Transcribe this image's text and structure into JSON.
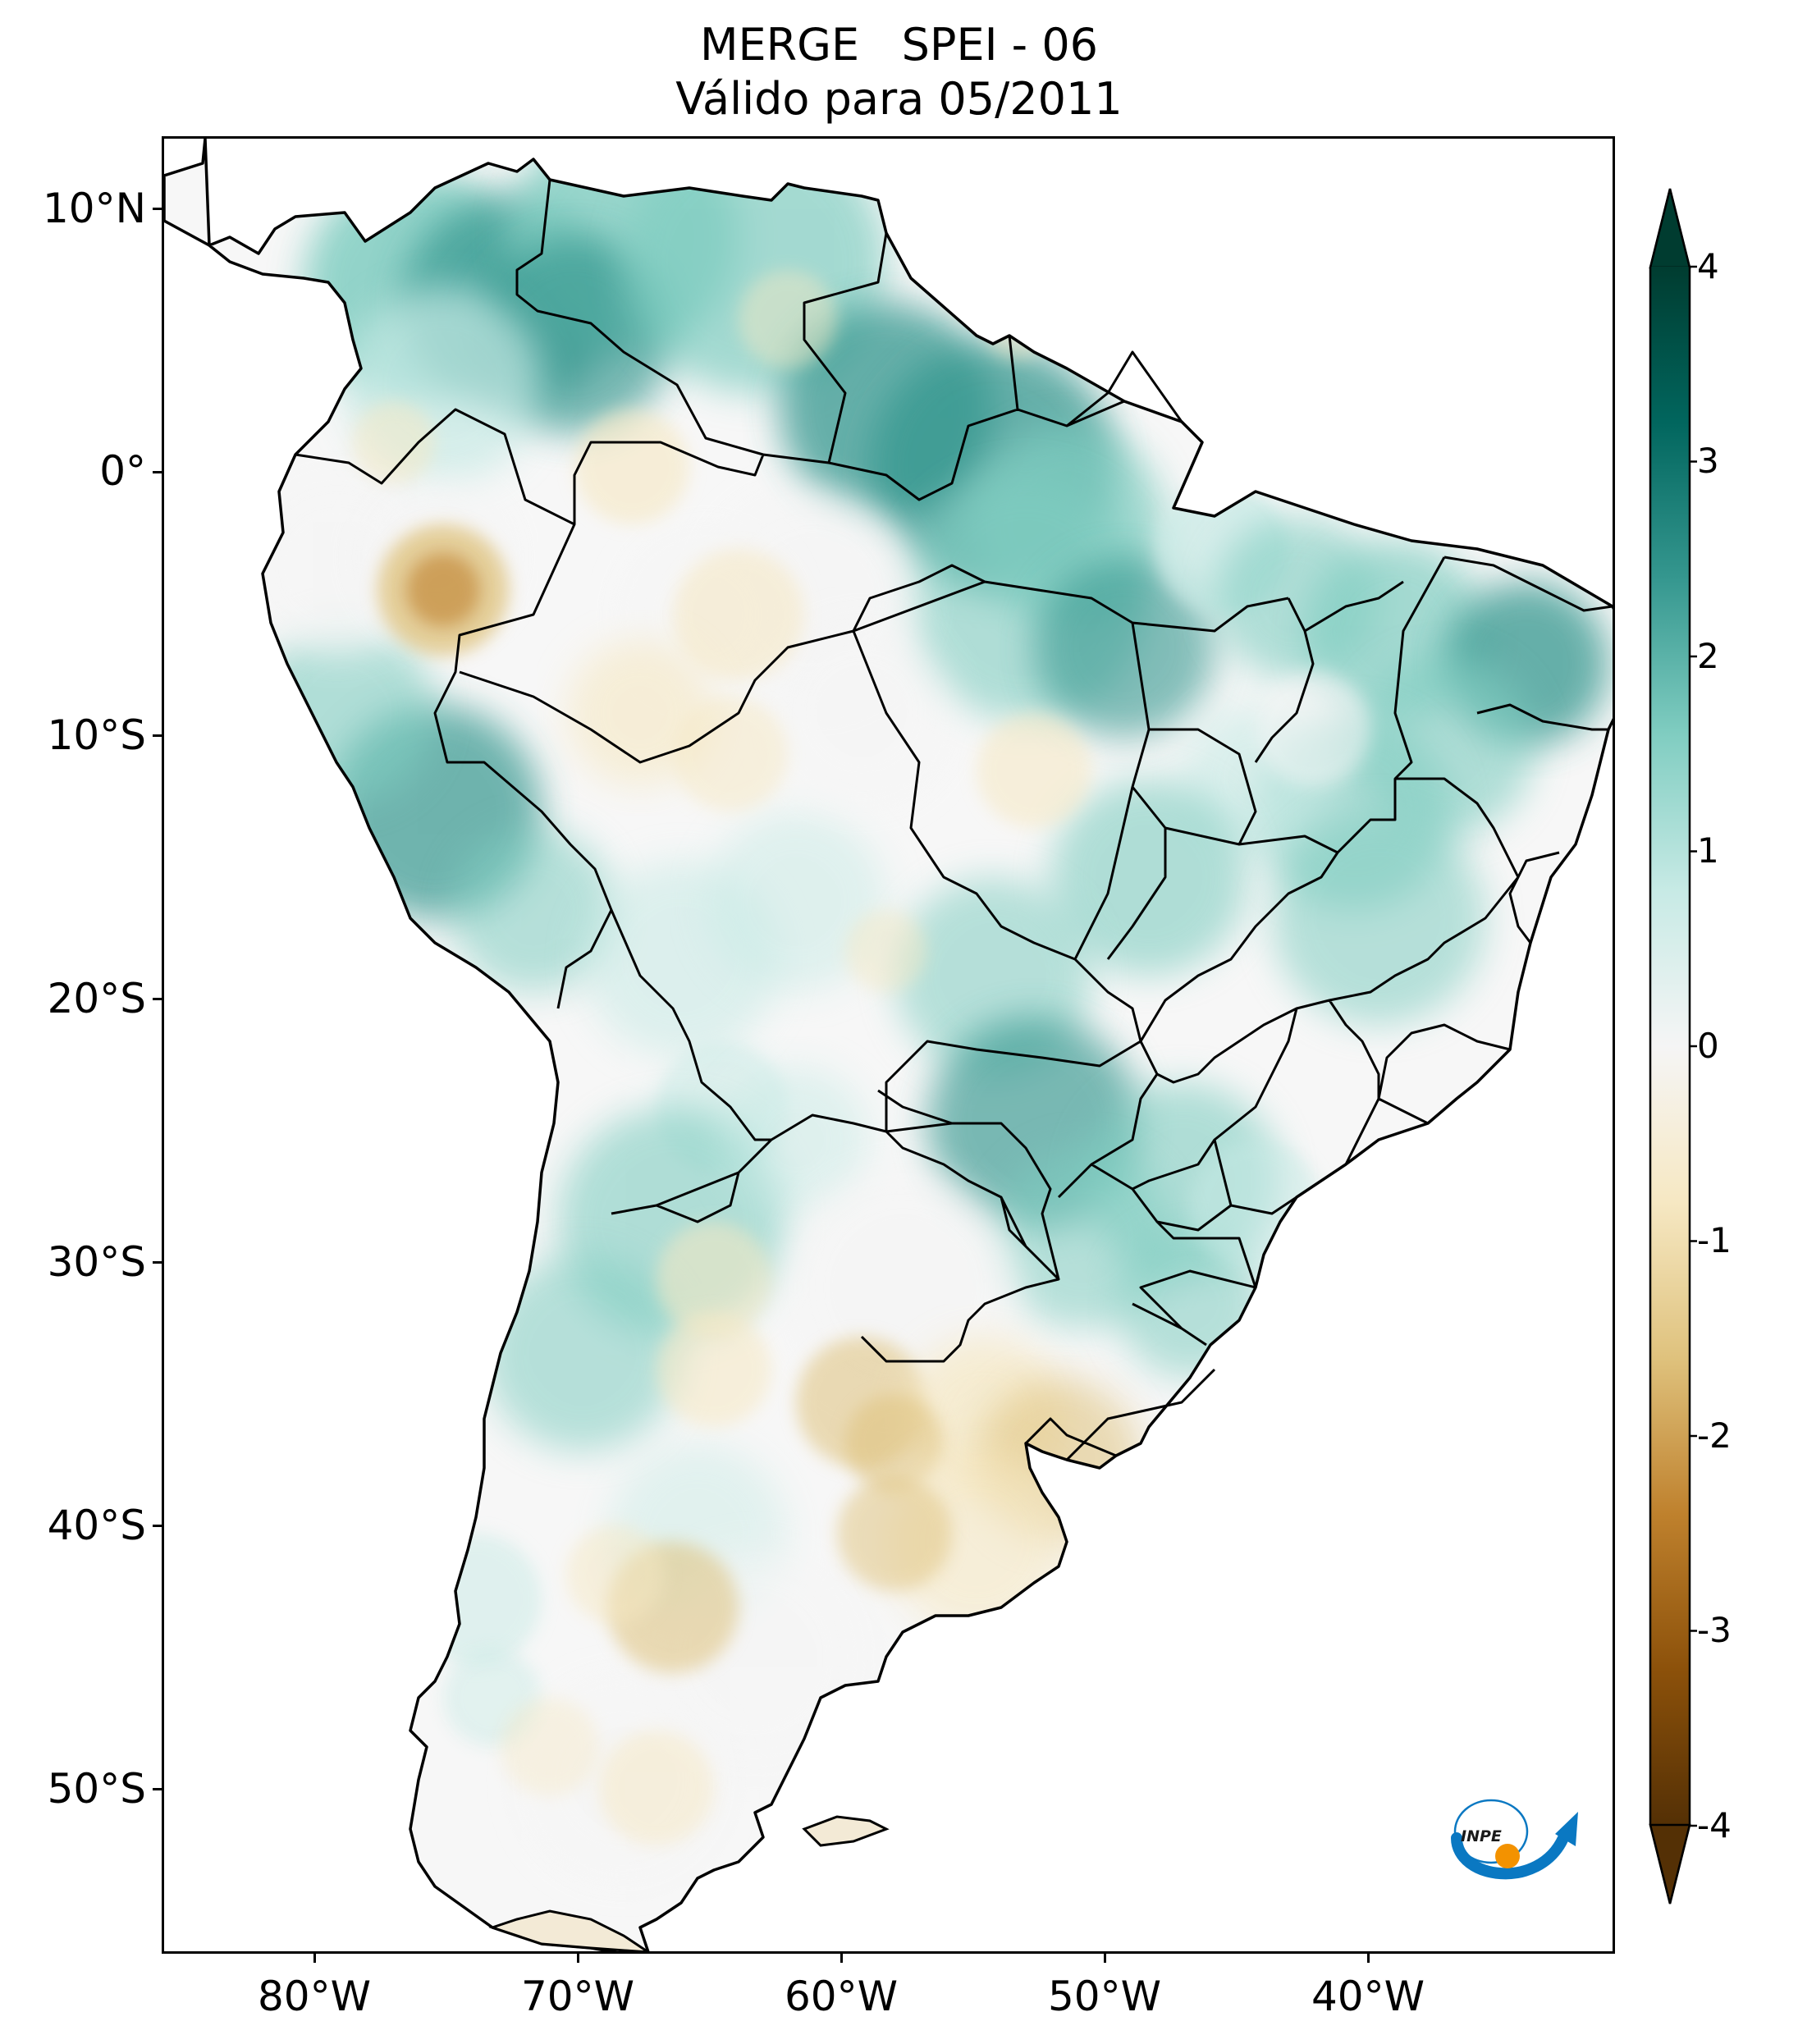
{
  "title": {
    "line1": "MERGE   SPEI - 06",
    "line2": "Válido para 05/2011"
  },
  "map": {
    "region": "South America",
    "variable": "SPEI - 06",
    "lon_range": [
      -85,
      -30
    ],
    "lat_range": [
      -56,
      13
    ],
    "lat_ticks": [
      "10°N",
      "0°",
      "10°S",
      "20°S",
      "30°S",
      "40°S",
      "50°S"
    ],
    "lon_ticks": [
      "80°W",
      "70°W",
      "60°W",
      "50°W",
      "40°W"
    ]
  },
  "colorbar": {
    "min": -4,
    "max": 4,
    "tick_labels": [
      "4",
      "3",
      "2",
      "1",
      "0",
      "-1",
      "-2",
      "-3",
      "-4"
    ],
    "colormap": "BrBG",
    "extend": "both",
    "colors": {
      "dry_extreme": "#543005",
      "dry_strong": "#8c510a",
      "dry_moderate": "#bf812d",
      "dry_mild": "#dfc27d",
      "dry_slight": "#f6e8c3",
      "neutral": "#f5f5f5",
      "wet_slight": "#c7eae5",
      "wet_mild": "#80cdc1",
      "wet_moderate": "#35978f",
      "wet_strong": "#01665e",
      "wet_extreme": "#003c30"
    }
  },
  "logo": {
    "text": "INPE",
    "colors": {
      "arc": "#0a78c2",
      "dot": "#f39200"
    }
  }
}
